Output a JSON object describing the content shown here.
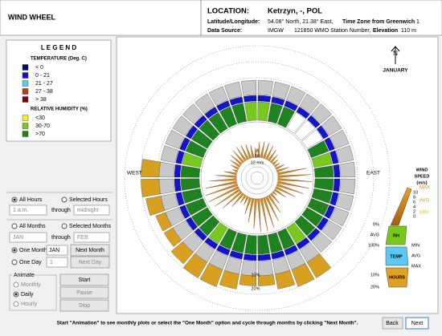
{
  "header": {
    "title": "WIND WHEEL",
    "location_label": "LOCATION:",
    "location": "Ketrzyn, -, POL",
    "latlon_label": "Latitude/Longitude:",
    "latlon": "54.08° North, 21.38° East,",
    "timezone_label": "Time Zone from Greenwich",
    "timezone": "1",
    "source_label": "Data Source:",
    "source": "IMGW",
    "station": "121850 WMO Station Number,",
    "elevation_label": "Elevation",
    "elevation": "110 m"
  },
  "legend": {
    "title": "L E G E N D",
    "temp_title": "TEMPERATURE (Deg. C)",
    "temp_items": [
      {
        "label": "< 0",
        "color": "#0a0a60"
      },
      {
        "label": "0  -  21",
        "color": "#1515c8"
      },
      {
        "label": "21  -  27",
        "color": "#5bc8f0"
      },
      {
        "label": "27  -  38",
        "color": "#b43c1e"
      },
      {
        "label": "> 38",
        "color": "#6e0a0a"
      }
    ],
    "rh_title": "RELATIVE HUMIDITY (%)",
    "rh_items": [
      {
        "label": "<30",
        "color": "#f0f032"
      },
      {
        "label": "30-70",
        "color": "#78c81e"
      },
      {
        "label": ">70",
        "color": "#1e821e"
      }
    ]
  },
  "controls": {
    "all_hours": "All Hours",
    "selected_hours": "Selected Hours",
    "hour_from": "1 a.m.",
    "hour_through": "through",
    "hour_to": "midnight",
    "all_months": "All Months",
    "selected_months": "Selected Months",
    "month_from": "JAN",
    "month_through": "through",
    "month_to": "FEB",
    "one_month": "One Month",
    "one_month_value": "JAN",
    "next_month": "Next Month",
    "one_day": "One Day",
    "one_day_value": "1",
    "next_day": "Next Day",
    "animate": "Animate",
    "monthly": "Monthly",
    "daily": "Daily",
    "hourly": "Hourly",
    "start": "Start",
    "pause": "Pause",
    "stop": "Stop"
  },
  "chart": {
    "north": "N",
    "month": "JANUARY",
    "west": "WEST",
    "east": "EAST",
    "ring_speed": "12 m/s",
    "ring_10": "10",
    "ring_8": "8",
    "pct_10": "10%",
    "pct_20": "20%",
    "key": {
      "title_lines": [
        "WIND",
        "SPEED",
        "(m/s)"
      ],
      "speeds": [
        "10",
        "8",
        "6",
        "4",
        "2",
        "0"
      ],
      "speed_max": "MAX",
      "speed_avg": "AVG",
      "speed_min": "MIN",
      "rh_0": "0%",
      "rh_avg": "AVG",
      "rh_100": "100%",
      "rh": "RH",
      "temp_min": "MIN",
      "temp_avg": "AVG",
      "temp_max": "MAX",
      "temp": "TEMP",
      "hours_10": "10%",
      "hours_20": "20%",
      "hours": "HOURS"
    }
  },
  "footer": {
    "hint": "Start \"Animation\" to see monthly plots or select the \"One Month\" option and cycle through months by clicking \"Next Month\".",
    "back": "Back",
    "next": "Next"
  }
}
